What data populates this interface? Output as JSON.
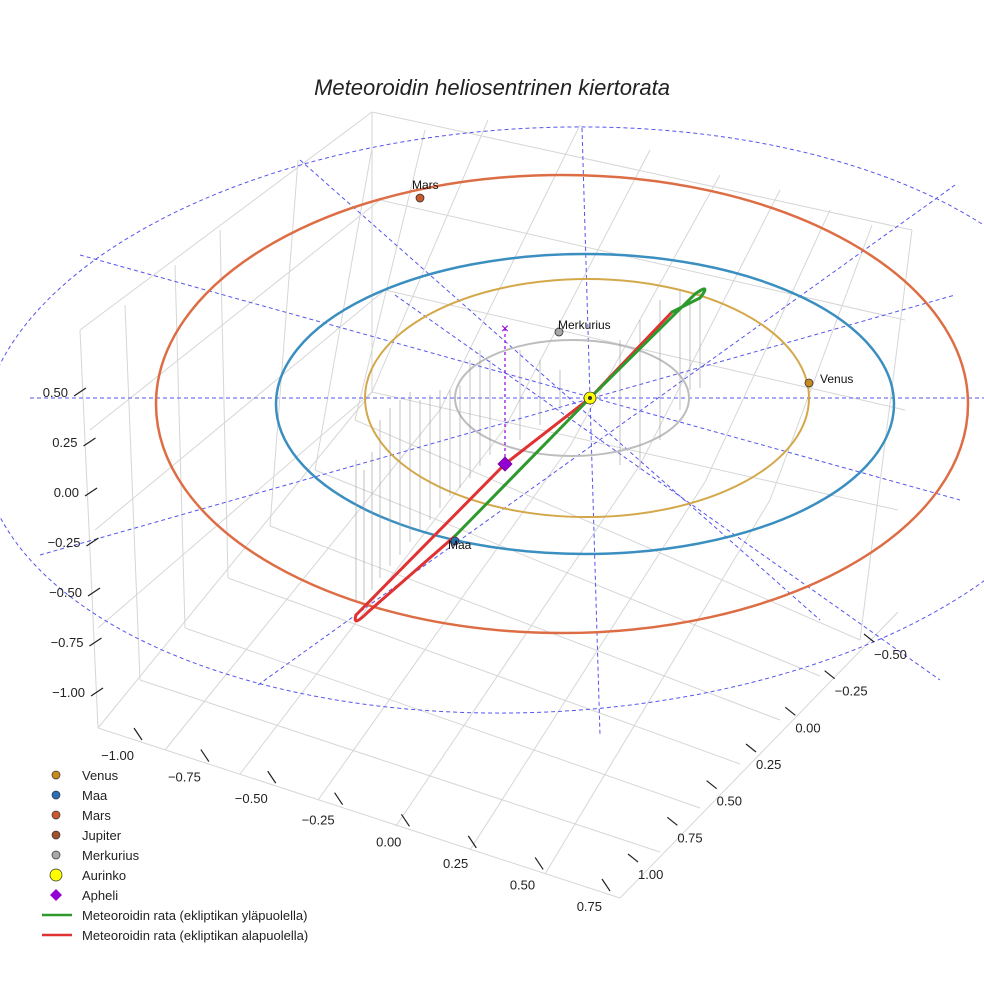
{
  "chart_data": {
    "type": "scatter3d",
    "title": "Meteoroidin heliosentrinen kiertorata",
    "axes": {
      "z_ticks": [
        "0.50",
        "0.25",
        "0.00",
        "−0.25",
        "−0.50",
        "−0.75",
        "−1.00"
      ],
      "x_ticks": [
        "−1.00",
        "−0.75",
        "−0.50",
        "−0.25",
        "0.00",
        "0.25",
        "0.50",
        "0.75"
      ],
      "y_ticks": [
        "−0.50",
        "−0.25",
        "0.00",
        "0.25",
        "0.50",
        "0.75",
        "1.00"
      ]
    },
    "planet_labels": {
      "mars": "Mars",
      "merkurius": "Merkurius",
      "venus": "Venus",
      "maa": "Maa"
    },
    "legend": [
      {
        "label": "Venus",
        "kind": "dot",
        "color": "#c98a1e"
      },
      {
        "label": "Maa",
        "kind": "dot",
        "color": "#2a6fb5"
      },
      {
        "label": "Mars",
        "kind": "dot",
        "color": "#c85a2e"
      },
      {
        "label": "Jupiter",
        "kind": "dot",
        "color": "#a0522d"
      },
      {
        "label": "Merkurius",
        "kind": "dot",
        "color": "#a9a9a9"
      },
      {
        "label": "Aurinko",
        "kind": "sun",
        "color": "#ffff00"
      },
      {
        "label": "Apheli",
        "kind": "diamond",
        "color": "#9400d3"
      },
      {
        "label": "Meteoroidin rata (ekliptikan yläpuolella)",
        "kind": "line",
        "color": "#2e9a2e"
      },
      {
        "label": "Meteoroidin rata (ekliptikan alapuolella)",
        "kind": "line",
        "color": "#e03232"
      }
    ],
    "orbits": {
      "merkurius": {
        "color": "#bdbdbd"
      },
      "venus": {
        "color": "#d4a84a"
      },
      "maa": {
        "color": "#3a8fc0"
      },
      "mars": {
        "color": "#dd6d44"
      }
    },
    "reference_color": "#5555ee",
    "grid_color": "#cfcfcf"
  }
}
